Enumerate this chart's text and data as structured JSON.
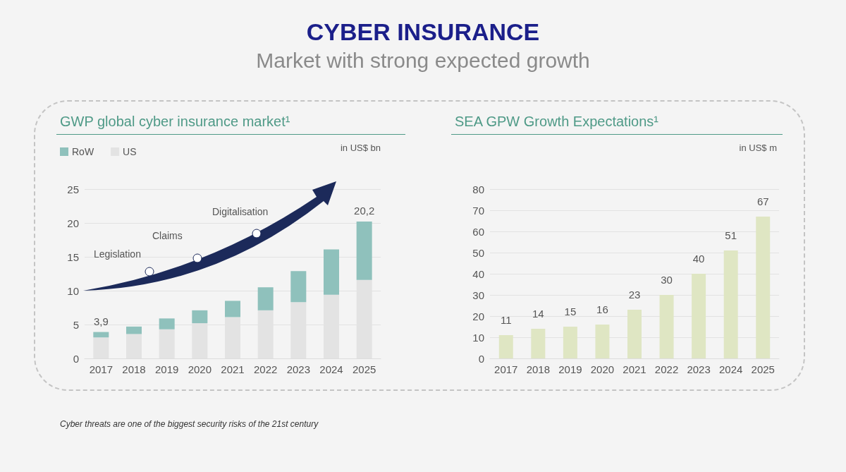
{
  "chart_data": [
    {
      "type": "other",
      "title": "CYBER INSURANCE",
      "subtitle": "Market with strong expected growth"
    },
    {
      "type": "bar",
      "title": "GWP global cyber insurance market¹",
      "categories": [
        "2017",
        "2018",
        "2019",
        "2020",
        "2021",
        "2022",
        "2023",
        "2024",
        "2025"
      ],
      "stacked": true,
      "series": [
        {
          "name": "US",
          "color": "#e3e3e3",
          "values": [
            3.1,
            3.6,
            4.3,
            5.2,
            6.1,
            7.1,
            8.3,
            9.4,
            11.6
          ]
        },
        {
          "name": "RoW",
          "color": "#8fc1bc",
          "values": [
            0.8,
            1.1,
            1.6,
            1.9,
            2.4,
            3.4,
            4.6,
            6.7,
            8.6
          ]
        }
      ],
      "totals": [
        "3,9",
        null,
        null,
        null,
        null,
        null,
        null,
        null,
        "20,2"
      ],
      "ylim": [
        0,
        25
      ],
      "yticks": [
        0,
        5,
        10,
        15,
        20,
        25
      ],
      "grid": "y",
      "legend": "top left",
      "annotations": [
        "in US$ bn",
        "Legislation",
        "Claims",
        "Digitalisation",
        "Cyber threats are one of the biggest security risks of the 21st century"
      ]
    },
    {
      "type": "bar",
      "title": "SEA GPW Growth Expectations¹",
      "categories": [
        "2017",
        "2018",
        "2019",
        "2020",
        "2021",
        "2022",
        "2023",
        "2024",
        "2025"
      ],
      "values": [
        11,
        14,
        15,
        16,
        23,
        30,
        40,
        51,
        67
      ],
      "color": "#dfe6c3",
      "data_labels": true,
      "ylim": [
        0,
        80
      ],
      "yticks": [
        0,
        10,
        20,
        30,
        40,
        50,
        60,
        70,
        80
      ],
      "grid": "y",
      "annotations": [
        "in US$ m"
      ]
    }
  ]
}
